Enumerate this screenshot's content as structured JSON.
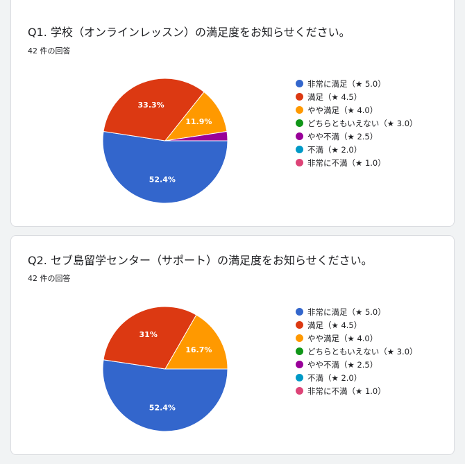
{
  "legend_labels": [
    "非常に満足（★ 5.0）",
    "満足（★ 4.5）",
    "やや満足（★ 4.0）",
    "どちらともいえない（★ 3.0）",
    "やや不満（★ 2.5）",
    "不満（★ 2.0）",
    "非常に不満（★ 1.0）"
  ],
  "colors": [
    "#3366cc",
    "#dc3912",
    "#ff9900",
    "#109618",
    "#990099",
    "#0099c6",
    "#dd4477"
  ],
  "q1": {
    "title": "Q1. 学校（オンラインレッスン）の満足度をお知らせください。",
    "responses": "42 件の回答"
  },
  "q2": {
    "title": "Q2. セブ島留学センター（サポート）の満足度をお知らせください。",
    "responses": "42 件の回答"
  },
  "chart_data": [
    {
      "type": "pie",
      "title": "Q1. 学校（オンラインレッスン）の満足度をお知らせください。",
      "categories": [
        "非常に満足（★ 5.0）",
        "満足（★ 4.5）",
        "やや満足（★ 4.0）",
        "どちらともいえない（★ 3.0）",
        "やや不満（★ 2.5）",
        "不満（★ 2.0）",
        "非常に不満（★ 1.0）"
      ],
      "values": [
        52.4,
        33.3,
        11.9,
        0,
        2.4,
        0,
        0
      ],
      "data_labels": [
        "52.4%",
        "33.3%",
        "11.9%",
        "",
        "",
        "",
        ""
      ],
      "legend": "right"
    },
    {
      "type": "pie",
      "title": "Q2. セブ島留学センター（サポート）の満足度をお知らせください。",
      "categories": [
        "非常に満足（★ 5.0）",
        "満足（★ 4.5）",
        "やや満足（★ 4.0）",
        "どちらともいえない（★ 3.0）",
        "やや不満（★ 2.5）",
        "不満（★ 2.0）",
        "非常に不満（★ 1.0）"
      ],
      "values": [
        52.4,
        31,
        16.7,
        0,
        0,
        0,
        0
      ],
      "data_labels": [
        "52.4%",
        "31%",
        "16.7%",
        "",
        "",
        "",
        ""
      ],
      "legend": "right"
    }
  ]
}
